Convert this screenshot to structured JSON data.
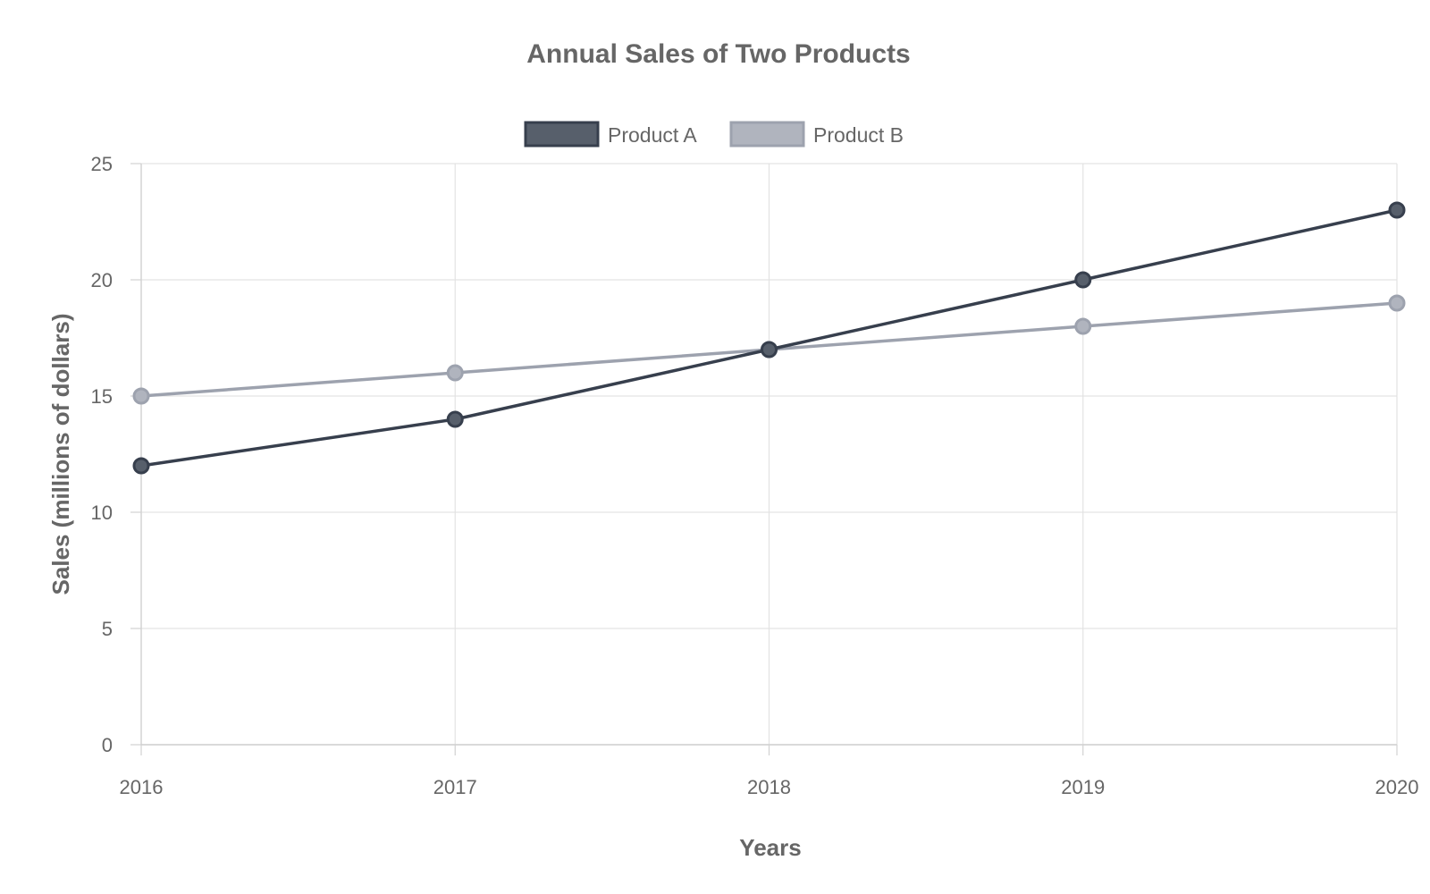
{
  "chart_data": {
    "type": "line",
    "title": "Annual Sales of Two Products",
    "xlabel": "Years",
    "ylabel": "Sales (millions of dollars)",
    "categories": [
      "2016",
      "2017",
      "2018",
      "2019",
      "2020"
    ],
    "ylim": [
      0,
      25
    ],
    "yticks": [
      0,
      5,
      10,
      15,
      20,
      25
    ],
    "grid": true,
    "legend_position": "top-center",
    "series": [
      {
        "name": "Product A",
        "values": [
          12,
          14,
          17,
          20,
          23
        ],
        "color": "#373f4d",
        "legend_fill": "#575f6b"
      },
      {
        "name": "Product B",
        "values": [
          15,
          16,
          17,
          18,
          19
        ],
        "color": "#9da2ae",
        "legend_fill": "#b0b4be"
      }
    ]
  }
}
